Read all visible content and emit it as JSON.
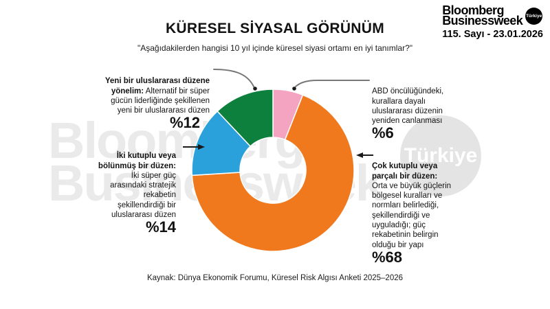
{
  "header": {
    "title": "KÜRESEL SİYASAL GÖRÜNÜM",
    "subtitle": "\"Aşağıdakilerden hangisi 10 yıl içinde küresel siyasi ortamı en iyi tanımlar?\""
  },
  "logo": {
    "line1": "Bloomberg",
    "line2": "Businessweek",
    "badge": "Türkiye",
    "issue": "115. Sayı - 23.01.2026"
  },
  "watermark": {
    "text_line1": "Bloomberg",
    "text_line2": "Businessweek",
    "badge": "Türkiye"
  },
  "annotations": {
    "new_order": {
      "bold": "Yeni bir uluslararası düzene\nyönelim:",
      "rest": " Alternatif bir süper\ngücün liderliğinde şekillenen\nyeni bir uluslararası düzen",
      "pct": "%12"
    },
    "bipolar": {
      "bold": "İki kutuplu veya\nbölünmüş bir düzen:",
      "rest": "\nİki süper güç\narasındaki stratejik\nrekabetin\nşekillendirdiği bir\nuluslararası düzen",
      "pct": "%14"
    },
    "us_led": {
      "bold": "",
      "rest": "ABD öncülüğündeki,\nkurallara dayalı\nuluslararası düzenin\nyeniden canlanması",
      "pct": "%6"
    },
    "multipolar": {
      "bold": "Çok kutuplu veya\nparçalı bir düzen:",
      "rest": "\nOrta ve büyük güçlerin\nbölgesel kuralları ve\nnormları belirlediği,\nşekillendirdiği ve\nuyguladığı; güç\nrekabetinin belirgin\nolduğu bir yapı",
      "pct": "%68"
    }
  },
  "source": "Kaynak: Dünya Ekonomik Forumu, Küresel Risk Algısı Anketi 2025–2026",
  "chart_data": {
    "type": "pie",
    "subtype": "donut",
    "title": "KÜRESEL SİYASAL GÖRÜNÜM",
    "question": "Aşağıdakilerden hangisi 10 yıl içinde küresel siyasi ortamı en iyi tanımlar?",
    "start_angle": "top",
    "direction": "clockwise",
    "segments": [
      {
        "id": "us-led",
        "label": "ABD öncülüğündeki, kurallara dayalı uluslararası düzenin yeniden canlanması",
        "value": 6,
        "pct_label": "%6",
        "color": "#F4A3C0"
      },
      {
        "id": "multipolar",
        "label": "Çok kutuplu veya parçalı bir düzen: Orta ve büyük güçlerin bölgesel kuralları ve normları belirlediği, şekillendirdiği ve uyguladığı; güç rekabetinin belirgin olduğu bir yapı",
        "value": 68,
        "pct_label": "%68",
        "color": "#F0791E"
      },
      {
        "id": "bipolar",
        "label": "İki kutuplu veya bölünmüş bir düzen: İki süper güç arasındaki stratejik rekabetin şekillendirdiği bir uluslararası düzen",
        "value": 14,
        "pct_label": "%14",
        "color": "#2BA1DC"
      },
      {
        "id": "new-order",
        "label": "Yeni bir uluslararası düzene yönelim: Alternatif bir süper gücün liderliğinde şekillenen yeni bir uluslararası düzen",
        "value": 12,
        "pct_label": "%12",
        "color": "#0D803E"
      }
    ]
  }
}
